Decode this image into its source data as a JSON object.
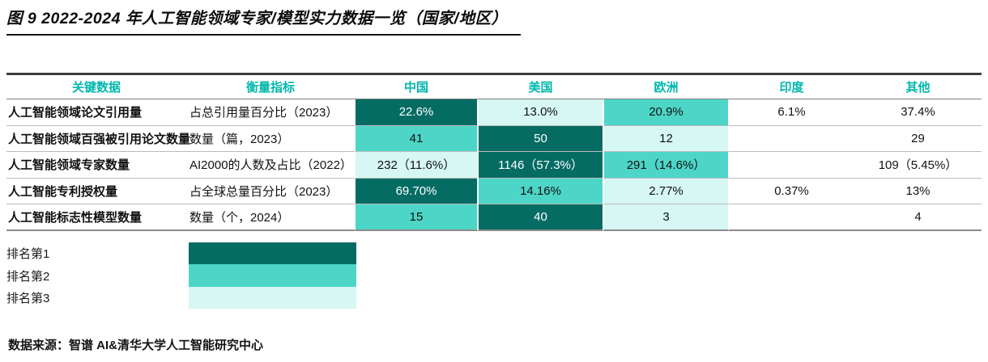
{
  "chart_data": {
    "type": "table",
    "title": "图 9 2022-2024 年人工智能领域专家/模型实力数据一览（国家/地区）",
    "columns": [
      "关键数据",
      "衡量指标",
      "中国",
      "美国",
      "欧洲",
      "印度",
      "其他"
    ],
    "rows": [
      {
        "metric": "人工智能领域论文引用量",
        "measure": "占总引用量百分比（2023）",
        "values": [
          {
            "text": "22.6%",
            "rank": 1
          },
          {
            "text": "13.0%",
            "rank": 3
          },
          {
            "text": "20.9%",
            "rank": 2
          },
          {
            "text": "6.1%",
            "rank": 0
          },
          {
            "text": "37.4%",
            "rank": 0
          }
        ]
      },
      {
        "metric": "人工智能领域百强被引用论文数量",
        "measure": "数量（篇，2023）",
        "values": [
          {
            "text": "41",
            "rank": 2
          },
          {
            "text": "50",
            "rank": 1
          },
          {
            "text": "12",
            "rank": 3
          },
          {
            "text": "",
            "rank": 0
          },
          {
            "text": "29",
            "rank": 0
          }
        ]
      },
      {
        "metric": "人工智能领域专家数量",
        "measure": "AI2000的人数及占比（2022）",
        "values": [
          {
            "text": "232（11.6%）",
            "rank": 3
          },
          {
            "text": "1146（57.3%）",
            "rank": 1
          },
          {
            "text": "291（14.6%）",
            "rank": 2
          },
          {
            "text": "",
            "rank": 0
          },
          {
            "text": "109（5.45%）",
            "rank": 0
          }
        ]
      },
      {
        "metric": "人工智能专利授权量",
        "measure": "占全球总量百分比（2023）",
        "values": [
          {
            "text": "69.70%",
            "rank": 1
          },
          {
            "text": "14.16%",
            "rank": 2
          },
          {
            "text": "2.77%",
            "rank": 3
          },
          {
            "text": "0.37%",
            "rank": 0
          },
          {
            "text": "13%",
            "rank": 0
          }
        ]
      },
      {
        "metric": "人工智能标志性模型数量",
        "measure": "数量（个，2024）",
        "values": [
          {
            "text": "15",
            "rank": 2
          },
          {
            "text": "40",
            "rank": 1
          },
          {
            "text": "3",
            "rank": 3
          },
          {
            "text": "",
            "rank": 0
          },
          {
            "text": "4",
            "rank": 0
          }
        ]
      }
    ],
    "legend": [
      {
        "label": "排名第1",
        "rank": 1
      },
      {
        "label": "排名第2",
        "rank": 2
      },
      {
        "label": "排名第3",
        "rank": 3
      }
    ],
    "source": "数据来源：智谱 AI&清华大学人工智能研究中心",
    "colors": {
      "rank1": "#056C64",
      "rank2": "#4DD6C7",
      "rank3": "#D6F7F3",
      "header_text": "#00B7AD"
    }
  }
}
